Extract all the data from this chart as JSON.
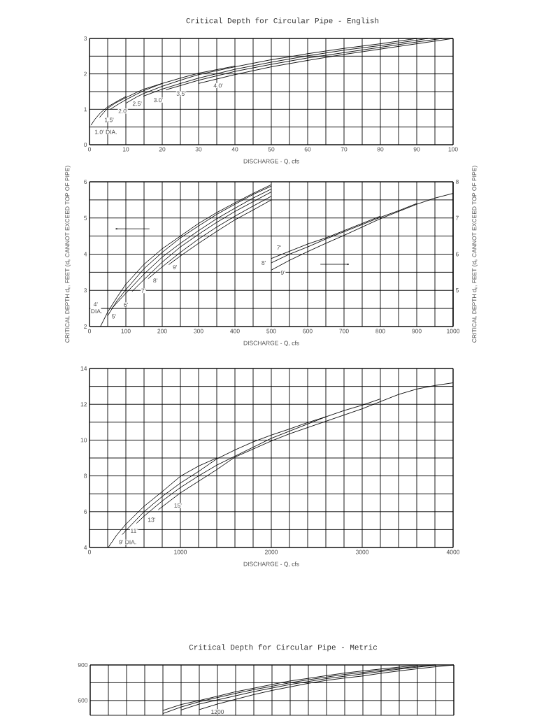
{
  "chart_data": [
    {
      "type": "line",
      "title": "Critical Depth for Circular Pipe - English",
      "xlabel": "DISCHARGE  -  Q, cfs",
      "grid": true,
      "xlim": [
        0,
        100
      ],
      "xticks": [
        0,
        {
          "value": 5,
          "label": null
        },
        10,
        {
          "value": 15,
          "label": null
        },
        20,
        {
          "value": 25,
          "label": null
        },
        30,
        {
          "value": 35,
          "label": null
        },
        40,
        {
          "value": 45,
          "label": null
        },
        50,
        {
          "value": 55,
          "label": null
        },
        60,
        {
          "value": 65,
          "label": null
        },
        70,
        {
          "value": 75,
          "label": null
        },
        80,
        {
          "value": 85,
          "label": null
        },
        90,
        {
          "value": 95,
          "label": null
        },
        100
      ],
      "ylim": [
        0,
        3
      ],
      "yticks": [
        0,
        {
          "value": 0.5,
          "label": null
        },
        1,
        {
          "value": 1.5,
          "label": null
        },
        2,
        {
          "value": 2.5,
          "label": null
        },
        3
      ],
      "series": [
        {
          "color": "#000000",
          "x": [
            0.4,
            1.5,
            3,
            5,
            8,
            10
          ],
          "values": [
            0.55,
            0.72,
            0.9,
            1.07,
            1.25,
            1.36
          ]
        },
        {
          "color": "#000000",
          "x": [
            2.75,
            4,
            5,
            7,
            10,
            13,
            15,
            20
          ],
          "values": [
            0.77,
            0.92,
            1.03,
            1.17,
            1.33,
            1.48,
            1.57,
            1.73
          ]
        },
        {
          "color": "#000000",
          "x": [
            5.7,
            8,
            10,
            13,
            15,
            20,
            25,
            30,
            35,
            40
          ],
          "values": [
            1.0,
            1.15,
            1.27,
            1.43,
            1.53,
            1.73,
            1.88,
            2.02,
            2.12,
            2.22
          ]
        },
        {
          "color": "#000000",
          "x": [
            10,
            13,
            15,
            20,
            25,
            30,
            40,
            50,
            55,
            60,
            70,
            80,
            88,
            90
          ],
          "values": [
            1.17,
            1.35,
            1.45,
            1.65,
            1.82,
            1.98,
            2.2,
            2.4,
            2.48,
            2.57,
            2.72,
            2.85,
            2.97,
            3.0
          ]
        },
        {
          "color": "#000000",
          "x": [
            14.8,
            20,
            25,
            30,
            40,
            50,
            60,
            70,
            80,
            90,
            93
          ],
          "values": [
            1.37,
            1.57,
            1.73,
            1.88,
            2.13,
            2.33,
            2.51,
            2.67,
            2.8,
            2.95,
            3.0
          ]
        },
        {
          "color": "#000000",
          "x": [
            21,
            25,
            30,
            40,
            50,
            60,
            70,
            80,
            90,
            97
          ],
          "values": [
            1.55,
            1.67,
            1.82,
            2.07,
            2.27,
            2.45,
            2.6,
            2.75,
            2.9,
            3.0
          ]
        },
        {
          "color": "#000000",
          "x": [
            30,
            40,
            50,
            60,
            70,
            80,
            90,
            100
          ],
          "values": [
            1.73,
            1.98,
            2.2,
            2.38,
            2.55,
            2.7,
            2.85,
            3.0
          ]
        }
      ],
      "annotations": [
        "1.0' DIA.",
        {
          "text": "1.5'",
          "x": 5.4,
          "y": 0.7
        },
        {
          "text": "2.0'",
          "x": 9.2,
          "y": 0.95
        },
        {
          "text": "2.5'",
          "x": 13.1,
          "y": 1.16
        },
        {
          "text": "3.0'",
          "x": 18.9,
          "y": 1.26
        },
        {
          "text": "3.5'",
          "x": 25.2,
          "y": 1.44
        },
        {
          "text": "4.0'",
          "x": 35.4,
          "y": 1.67
        }
      ]
    },
    {
      "type": "line",
      "xlabel": "DISCHARGE  -  Q, cfs",
      "ylabel": "CRITICAL DEPTH  d$_{c}$, FEET (d$_{c}$ CANNOT EXCEED TOP OF PIPE)",
      "y2label": "CRITICAL DEPTH  d$_{c}$, FEET (d$_{c}$ CANNOT EXCEED TOP OF PIPE)",
      "grid": true,
      "xlim": [
        0,
        1000
      ],
      "xticks": [
        0,
        {
          "value": 50,
          "label": null
        },
        100,
        {
          "value": 150,
          "label": null
        },
        200,
        {
          "value": 250,
          "label": null
        },
        300,
        {
          "value": 350,
          "label": null
        },
        400,
        {
          "value": 450,
          "label": null
        },
        500,
        {
          "value": 550,
          "label": null
        },
        600,
        {
          "value": 650,
          "label": null
        },
        700,
        {
          "value": 750,
          "label": null
        },
        800,
        {
          "value": 850,
          "label": null
        },
        900,
        {
          "value": 950,
          "label": null
        },
        1000
      ],
      "ylim": [
        2,
        6
      ],
      "yticks": [
        2,
        {
          "value": 2.5,
          "label": null
        },
        3,
        {
          "value": 3.5,
          "label": null
        },
        4,
        {
          "value": 4.5,
          "label": null
        },
        5,
        {
          "value": 5.5,
          "label": null
        },
        6
      ],
      "y2lim": [
        4,
        8
      ],
      "y2ticks": [
        {
          "value": 4,
          "label": null
        },
        5,
        6,
        7,
        8
      ],
      "series": [
        {
          "color": "#000000",
          "x": [
            30,
            50,
            75,
            100,
            150,
            200,
            250,
            300,
            350,
            400,
            450,
            500
          ],
          "values": [
            2.0,
            2.4,
            2.8,
            3.17,
            3.72,
            4.15,
            4.5,
            4.85,
            5.15,
            5.42,
            5.68,
            5.92
          ]
        },
        {
          "color": "#000000",
          "x": [
            50,
            75,
            100,
            150,
            200,
            250,
            300,
            350,
            400,
            450,
            500
          ],
          "values": [
            2.3,
            2.7,
            3.02,
            3.6,
            4.05,
            4.45,
            4.78,
            5.1,
            5.38,
            5.65,
            5.88
          ]
        },
        {
          "color": "#000000",
          "x": [
            61,
            100,
            150,
            200,
            250,
            300,
            350,
            400,
            450,
            500
          ],
          "values": [
            2.5,
            2.92,
            3.45,
            3.92,
            4.3,
            4.65,
            4.98,
            5.27,
            5.55,
            5.8
          ]
        },
        {
          "color": "#000000",
          "x": [
            117,
            150,
            200,
            250,
            300,
            350,
            400,
            450,
            500
          ],
          "values": [
            2.97,
            3.3,
            3.78,
            4.2,
            4.55,
            4.88,
            5.18,
            5.45,
            5.72
          ]
        },
        {
          "color": "#000000",
          "x": [
            161,
            200,
            250,
            300,
            350,
            400,
            450,
            500
          ],
          "values": [
            3.32,
            3.65,
            4.05,
            4.42,
            4.75,
            5.05,
            5.33,
            5.6
          ]
        },
        {
          "color": "#000000",
          "x": [
            218,
            250,
            300,
            350,
            400,
            450,
            500
          ],
          "values": [
            3.71,
            3.95,
            4.3,
            4.63,
            4.95,
            5.22,
            5.5
          ]
        },
        {
          "color": "#000000",
          "axis": "y2",
          "x": [
            500,
            550,
            600,
            650,
            700,
            750,
            800
          ],
          "values": [
            5.88,
            6.08,
            6.28,
            6.45,
            6.65,
            6.85,
            7.05
          ]
        },
        {
          "color": "#000000",
          "axis": "y2",
          "x": [
            500,
            550,
            600,
            650,
            700,
            750,
            800,
            850,
            900
          ],
          "values": [
            5.76,
            6.0,
            6.2,
            6.42,
            6.62,
            6.82,
            7.02,
            7.2,
            7.4
          ]
        },
        {
          "color": "#000000",
          "axis": "y2",
          "x": [
            500,
            550,
            600,
            650,
            700,
            750,
            800,
            850,
            900,
            950,
            1000
          ],
          "values": [
            5.56,
            5.83,
            6.07,
            6.3,
            6.52,
            6.75,
            6.98,
            7.18,
            7.38,
            7.55,
            7.68
          ]
        }
      ],
      "annotations": [
        {
          "text": "4' DIA.",
          "x": 17,
          "y": 2.52
        },
        {
          "text": "5'",
          "x": 67,
          "y": 2.28
        },
        {
          "text": "6'",
          "x": 100,
          "y": 2.6
        },
        {
          "text": "7'",
          "x": 148,
          "y": 2.99
        },
        {
          "text": "8'",
          "x": 181,
          "y": 3.27
        },
        {
          "text": "9'",
          "x": 235,
          "y": 3.64
        },
        {
          "text": "7'",
          "x": 521,
          "y": 4.18
        },
        {
          "text": "8'",
          "x": 479,
          "y": 3.76
        },
        {
          "text": "9'",
          "x": 532,
          "y": 3.49
        }
      ]
    },
    {
      "type": "line",
      "xlabel": "DISCHARGE  -  Q, cfs",
      "grid": true,
      "xlim": [
        0,
        4000
      ],
      "xticks": [
        0,
        {
          "value": 200,
          "label": null
        },
        {
          "value": 400,
          "label": null
        },
        {
          "value": 600,
          "label": null
        },
        {
          "value": 800,
          "label": null
        },
        1000,
        {
          "value": 1200,
          "label": null
        },
        {
          "value": 1400,
          "label": null
        },
        {
          "value": 1600,
          "label": null
        },
        {
          "value": 1800,
          "label": null
        },
        2000,
        {
          "value": 2200,
          "label": null
        },
        {
          "value": 2400,
          "label": null
        },
        {
          "value": 2600,
          "label": null
        },
        {
          "value": 2800,
          "label": null
        },
        3000,
        {
          "value": 3200,
          "label": null
        },
        {
          "value": 3400,
          "label": null
        },
        {
          "value": 3600,
          "label": null
        },
        {
          "value": 3800,
          "label": null
        },
        4000
      ],
      "ylim": [
        4,
        14
      ],
      "yticks": [
        4,
        {
          "value": 5,
          "label": null
        },
        6,
        {
          "value": 7,
          "label": null
        },
        8,
        {
          "value": 9,
          "label": null
        },
        10,
        {
          "value": 11,
          "label": null
        },
        12,
        {
          "value": 13,
          "label": null
        },
        14
      ],
      "series": [
        {
          "color": "#000000",
          "x": [
            206,
            300,
            400,
            600,
            800,
            1000,
            1200,
            1400
          ],
          "values": [
            4.0,
            4.7,
            5.3,
            6.3,
            7.12,
            7.98,
            8.55,
            9.0
          ]
        },
        {
          "color": "#000000",
          "x": [
            360,
            400,
            600,
            800,
            1000,
            1200,
            1400,
            1600,
            1800,
            2000,
            2200,
            2400,
            2600
          ],
          "values": [
            4.72,
            4.95,
            6.0,
            6.85,
            7.6,
            8.25,
            8.95,
            9.45,
            9.9,
            10.28,
            10.62,
            10.98,
            11.3
          ]
        },
        {
          "color": "#000000",
          "x": [
            517,
            600,
            800,
            1000,
            1200,
            1400,
            1600,
            1800,
            2000,
            2200,
            2400,
            2600,
            2800,
            3000,
            3200
          ],
          "values": [
            5.35,
            5.75,
            6.6,
            7.35,
            8.0,
            8.6,
            9.1,
            9.6,
            10.1,
            10.5,
            10.9,
            11.3,
            11.65,
            11.95,
            12.3
          ]
        },
        {
          "color": "#000000",
          "x": [
            757,
            1000,
            1200,
            1400,
            1600,
            1800,
            2000,
            2200,
            2400,
            2600,
            2800,
            3000,
            3200,
            3400,
            3600,
            3800,
            4000
          ],
          "values": [
            6.11,
            7.05,
            7.7,
            8.35,
            9.05,
            9.5,
            9.95,
            10.35,
            10.7,
            11.05,
            11.4,
            11.75,
            12.15,
            12.55,
            12.85,
            13.05,
            13.2
          ]
        }
      ],
      "annotations": [
        "9' DIA.",
        {
          "text": "11'",
          "x": 490,
          "y": 4.93
        },
        {
          "text": "13'",
          "x": 683,
          "y": 5.55
        },
        {
          "text": "15'",
          "x": 972,
          "y": 6.35
        }
      ]
    },
    {
      "type": "line",
      "title": "Critical Depth for Circular Pipe - Metric",
      "grid": true,
      "tick_labels": "y",
      "categories": [
        null,
        null,
        null,
        null,
        null,
        null,
        null,
        null,
        null,
        null,
        null,
        null,
        null,
        null,
        null,
        null,
        null,
        null,
        null,
        null,
        null
      ],
      "ylim": [
        475,
        900
      ],
      "yticks": [
        600,
        {
          "value": 750,
          "label": null
        },
        900
      ],
      "series": [
        {
          "color": "#000000",
          "values": [
            null,
            null,
            null,
            null,
            516,
            566,
            600,
            636,
            674,
            704,
            735,
            765,
            787,
            810,
            832,
            850,
            866,
            882,
            898,
            null,
            null
          ]
        },
        {
          "color": "#000000",
          "values": [
            null,
            null,
            null,
            null,
            490,
            545,
            590,
            625,
            660,
            692,
            720,
            750,
            775,
            798,
            820,
            837,
            855,
            872,
            888,
            900,
            null
          ]
        },
        {
          "color": "#000000",
          "values": [
            null,
            null,
            null,
            null,
            null,
            520,
            570,
            605,
            640,
            675,
            705,
            735,
            760,
            785,
            805,
            825,
            845,
            865,
            882,
            898,
            null
          ]
        },
        {
          "color": "#000000",
          "values": [
            null,
            null,
            null,
            null,
            null,
            null,
            523,
            570,
            610,
            650,
            685,
            715,
            745,
            770,
            790,
            807,
            830,
            850,
            868,
            885,
            900
          ]
        }
      ],
      "annotations": [
        "1200"
      ]
    }
  ]
}
